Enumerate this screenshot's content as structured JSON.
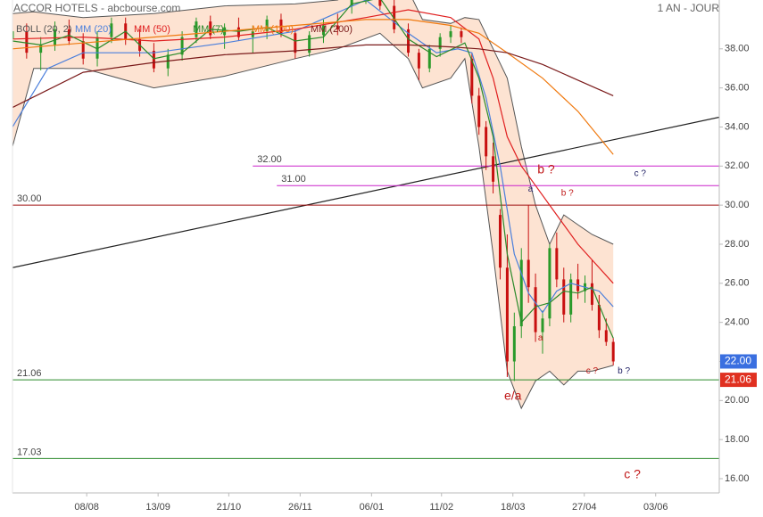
{
  "chart_data": {
    "type": "candlestick",
    "title": "ACCOR HOTELS - abcbourse.com",
    "period": "1 AN - JOUR",
    "xlim": [
      0,
      100
    ],
    "ylim": [
      15.27,
      40.5
    ],
    "xticks": [
      {
        "value": 10.5,
        "label": "08/08"
      },
      {
        "value": 20.6,
        "label": "13/09"
      },
      {
        "value": 30.6,
        "label": "21/10"
      },
      {
        "value": 40.7,
        "label": "26/11"
      },
      {
        "value": 50.8,
        "label": "06/01"
      },
      {
        "value": 60.7,
        "label": "11/02"
      },
      {
        "value": 70.8,
        "label": "18/03"
      },
      {
        "value": 80.9,
        "label": "27/04"
      },
      {
        "value": 91,
        "label": "03/06"
      }
    ],
    "yticks": [
      {
        "value": 16,
        "label": "16.00"
      },
      {
        "value": 18,
        "label": "18.00"
      },
      {
        "value": 20,
        "label": "20.00"
      },
      {
        "value": 22,
        "label": "22.00"
      },
      {
        "value": 24,
        "label": "24.00"
      },
      {
        "value": 26,
        "label": "26.00"
      },
      {
        "value": 28,
        "label": "28.00"
      },
      {
        "value": 30,
        "label": "30.00"
      },
      {
        "value": 32,
        "label": "32.00"
      },
      {
        "value": 34,
        "label": "34.00"
      },
      {
        "value": 36,
        "label": "36.00"
      },
      {
        "value": 38,
        "label": "38.00"
      }
    ],
    "up_color": "#2a9a2a",
    "down_color": "#c81010",
    "candles": {
      "x": [
        0,
        2,
        4,
        6,
        8,
        10,
        12,
        14,
        16,
        18,
        20,
        22,
        24,
        26,
        28,
        30,
        32,
        34,
        36,
        38,
        40,
        42,
        44,
        46,
        48,
        50,
        52,
        54,
        56,
        57.5,
        59,
        60.5,
        62,
        63.5,
        65,
        66,
        67,
        68,
        69,
        70,
        71,
        72,
        73,
        74,
        75,
        76,
        77,
        78,
        79,
        80,
        81,
        82,
        83,
        84,
        85
      ],
      "open": [
        38.5,
        38.9,
        37.8,
        38.2,
        39.0,
        38.4,
        37.5,
        38.6,
        39.3,
        38.5,
        37.9,
        37.0,
        37.7,
        38.6,
        39.4,
        38.7,
        39.1,
        38.6,
        38.9,
        39.5,
        38.8,
        37.8,
        38.7,
        39.2,
        40.2,
        40.9,
        41.0,
        40.2,
        39.0,
        37.8,
        37.0,
        38.0,
        38.6,
        38.9,
        37.5,
        35.6,
        34.0,
        32.5,
        29.5,
        26.8,
        22.0,
        23.8,
        27.2,
        25.8,
        23.5,
        24.2,
        27.8,
        26.2,
        24.4,
        26.2,
        25.6,
        26.0,
        24.9,
        23.6,
        23.0
      ],
      "high": [
        39.2,
        39.3,
        38.6,
        39.4,
        39.5,
        38.8,
        38.9,
        39.6,
        39.6,
        39.0,
        38.3,
        38.0,
        38.9,
        39.6,
        39.7,
        39.3,
        39.6,
        39.2,
        39.7,
        39.8,
        39.0,
        38.9,
        39.5,
        39.8,
        41.2,
        41.5,
        41.3,
        40.5,
        39.3,
        38.0,
        38.2,
        38.8,
        39.2,
        39.1,
        37.8,
        36.0,
        34.3,
        33.2,
        29.8,
        28.5,
        24.5,
        27.8,
        30.0,
        26.5,
        24.6,
        28.0,
        28.6,
        26.8,
        26.5,
        27.0,
        26.4,
        27.2,
        25.4,
        24.2,
        23.2
      ],
      "low": [
        37.8,
        37.5,
        36.9,
        37.9,
        38.2,
        37.2,
        37.1,
        38.3,
        38.2,
        37.6,
        36.8,
        36.6,
        37.4,
        38.3,
        38.5,
        38.0,
        38.4,
        37.8,
        38.5,
        38.6,
        37.5,
        37.6,
        38.3,
        38.7,
        39.8,
        40.3,
        40.0,
        38.8,
        37.6,
        36.4,
        36.8,
        37.6,
        38.3,
        38.3,
        35.2,
        33.6,
        31.8,
        30.6,
        26.2,
        21.2,
        21.0,
        23.2,
        25.0,
        23.0,
        22.4,
        23.8,
        25.8,
        24.0,
        24.0,
        25.2,
        25.0,
        24.6,
        23.2,
        22.8,
        21.8
      ],
      "close": [
        38.9,
        37.8,
        38.2,
        39.0,
        38.4,
        37.5,
        38.6,
        39.3,
        38.5,
        37.9,
        37.0,
        37.7,
        38.6,
        39.4,
        38.7,
        39.1,
        38.6,
        38.9,
        39.5,
        38.8,
        37.8,
        38.7,
        39.2,
        39.0,
        40.9,
        41.0,
        40.2,
        39.0,
        37.8,
        37.0,
        38.0,
        38.6,
        38.9,
        38.6,
        35.6,
        34.0,
        32.5,
        31.2,
        26.8,
        22.0,
        23.8,
        27.2,
        25.8,
        23.5,
        24.2,
        27.8,
        26.2,
        24.4,
        26.2,
        25.6,
        26.0,
        24.9,
        23.6,
        23.0,
        22.0
      ]
    },
    "bollinger": {
      "name": "BOLL (20, 2)",
      "color": "#555555",
      "fill": "#fde3d2",
      "x": [
        0,
        3,
        10,
        20,
        30,
        40,
        46,
        52,
        56,
        58,
        62,
        64,
        66,
        68,
        70,
        72,
        74,
        76,
        78,
        80,
        82,
        85
      ],
      "upper": [
        39.8,
        39.9,
        39.6,
        39.8,
        40.2,
        40.3,
        40.5,
        41.5,
        41.0,
        39.5,
        39.3,
        39.6,
        39.5,
        38.0,
        36.5,
        33.0,
        30.0,
        28.0,
        29.5,
        29.0,
        28.5,
        28.0
      ],
      "lower": [
        33.0,
        37.0,
        37.0,
        36.0,
        36.6,
        37.5,
        38.0,
        38.8,
        37.5,
        36.0,
        36.5,
        37.5,
        33.0,
        27.5,
        21.5,
        19.6,
        21.0,
        21.5,
        20.8,
        21.5,
        21.5,
        21.8
      ]
    },
    "series": [
      {
        "name": "MM (20)",
        "color": "#4a7fdc",
        "x": [
          0,
          5,
          10,
          20,
          30,
          40,
          50,
          56,
          60,
          63,
          65,
          67,
          69,
          71,
          73,
          75,
          77,
          79,
          81,
          83,
          85
        ],
        "values": [
          34.0,
          37.0,
          37.8,
          37.8,
          38.3,
          38.9,
          40.5,
          38.8,
          37.8,
          38.0,
          37.8,
          35.5,
          32.0,
          27.5,
          25.5,
          24.5,
          25.6,
          26.0,
          25.8,
          25.6,
          24.8
        ]
      },
      {
        "name": "MM (50)",
        "color": "#e02020",
        "x": [
          0,
          10,
          20,
          30,
          40,
          50,
          56,
          62,
          66,
          68,
          70,
          72,
          74,
          76,
          78,
          80,
          82,
          85
        ],
        "values": [
          38.5,
          38.6,
          38.4,
          38.6,
          39.0,
          39.6,
          40.0,
          39.6,
          38.5,
          36.5,
          33.5,
          32.0,
          31.0,
          30.0,
          29.0,
          28.0,
          27.2,
          26.0
        ]
      },
      {
        "name": "MM (7)",
        "color": "#2a8a2a",
        "x": [
          0,
          4,
          8,
          12,
          16,
          20,
          24,
          28,
          32,
          36,
          40,
          44,
          48,
          52,
          56,
          60,
          64,
          66,
          68,
          70,
          72,
          74,
          76,
          78,
          80,
          82,
          84,
          85
        ],
        "values": [
          38.4,
          38.2,
          38.7,
          38.0,
          38.9,
          37.5,
          37.8,
          39.0,
          38.9,
          39.1,
          38.4,
          38.6,
          40.3,
          40.6,
          38.5,
          37.6,
          38.3,
          36.5,
          33.5,
          27.5,
          24.0,
          24.8,
          25.0,
          25.6,
          25.5,
          25.8,
          24.0,
          23.2
        ]
      },
      {
        "name": "MM (100)",
        "color": "#f07a10",
        "x": [
          0,
          10,
          20,
          30,
          40,
          50,
          56,
          62,
          66,
          70,
          75,
          80,
          85
        ],
        "values": [
          38.0,
          38.3,
          38.6,
          38.9,
          39.2,
          39.5,
          39.5,
          39.2,
          38.8,
          37.8,
          36.5,
          34.8,
          32.6
        ]
      },
      {
        "name": "MM (200)",
        "color": "#7a1a1a",
        "x": [
          0,
          10,
          20,
          30,
          40,
          50,
          56,
          62,
          66,
          70,
          75,
          80,
          85
        ],
        "values": [
          35.0,
          36.8,
          37.3,
          37.7,
          37.9,
          38.2,
          38.2,
          38.1,
          38.0,
          37.8,
          37.2,
          36.4,
          35.6
        ]
      }
    ],
    "trendline": {
      "color": "#222222",
      "x": [
        0,
        100
      ],
      "values": [
        26.8,
        34.5
      ]
    },
    "levels": [
      {
        "value": 32,
        "label": "32.00",
        "color": "#cc22cc",
        "x_start": 34
      },
      {
        "value": 31,
        "label": "31.00",
        "color": "#cc22cc",
        "x_start": 37.4
      },
      {
        "value": 30,
        "label": "30.00",
        "color": "#a01010",
        "x_start": 0
      },
      {
        "value": 21.06,
        "label": "21.06",
        "color": "#2a8a2a",
        "x_start": 0
      },
      {
        "value": 17.03,
        "label": "17.03",
        "color": "#2a8a2a",
        "x_start": 0
      }
    ],
    "annotations": [
      {
        "text": "b ?",
        "x": 75.5,
        "y": 31.8,
        "color": "#c01818",
        "style": "large"
      },
      {
        "text": "a",
        "x": 73.3,
        "y": 30.8,
        "color": "#222266",
        "style": "small"
      },
      {
        "text": "b ?",
        "x": 78.5,
        "y": 30.6,
        "color": "#c01818",
        "style": "small"
      },
      {
        "text": "c ?",
        "x": 88.8,
        "y": 31.6,
        "color": "#222266",
        "style": "small"
      },
      {
        "text": "e/a",
        "x": 70.8,
        "y": 20.2,
        "color": "#c01818",
        "style": "large"
      },
      {
        "text": "a",
        "x": 74.7,
        "y": 23.2,
        "color": "#c01818",
        "style": "small"
      },
      {
        "text": "c ?",
        "x": 82,
        "y": 21.5,
        "color": "#c01818",
        "style": "small"
      },
      {
        "text": "b ?",
        "x": 86.5,
        "y": 21.5,
        "color": "#222266",
        "style": "small"
      },
      {
        "text": "c ?",
        "x": 87.7,
        "y": 16.2,
        "color": "#c01818",
        "style": "large"
      }
    ],
    "price_tags": [
      {
        "value": 22,
        "label": "22.00",
        "color": "#3a6fe0"
      },
      {
        "value": 21.06,
        "label": "21.06",
        "color": "#e03020"
      }
    ]
  }
}
